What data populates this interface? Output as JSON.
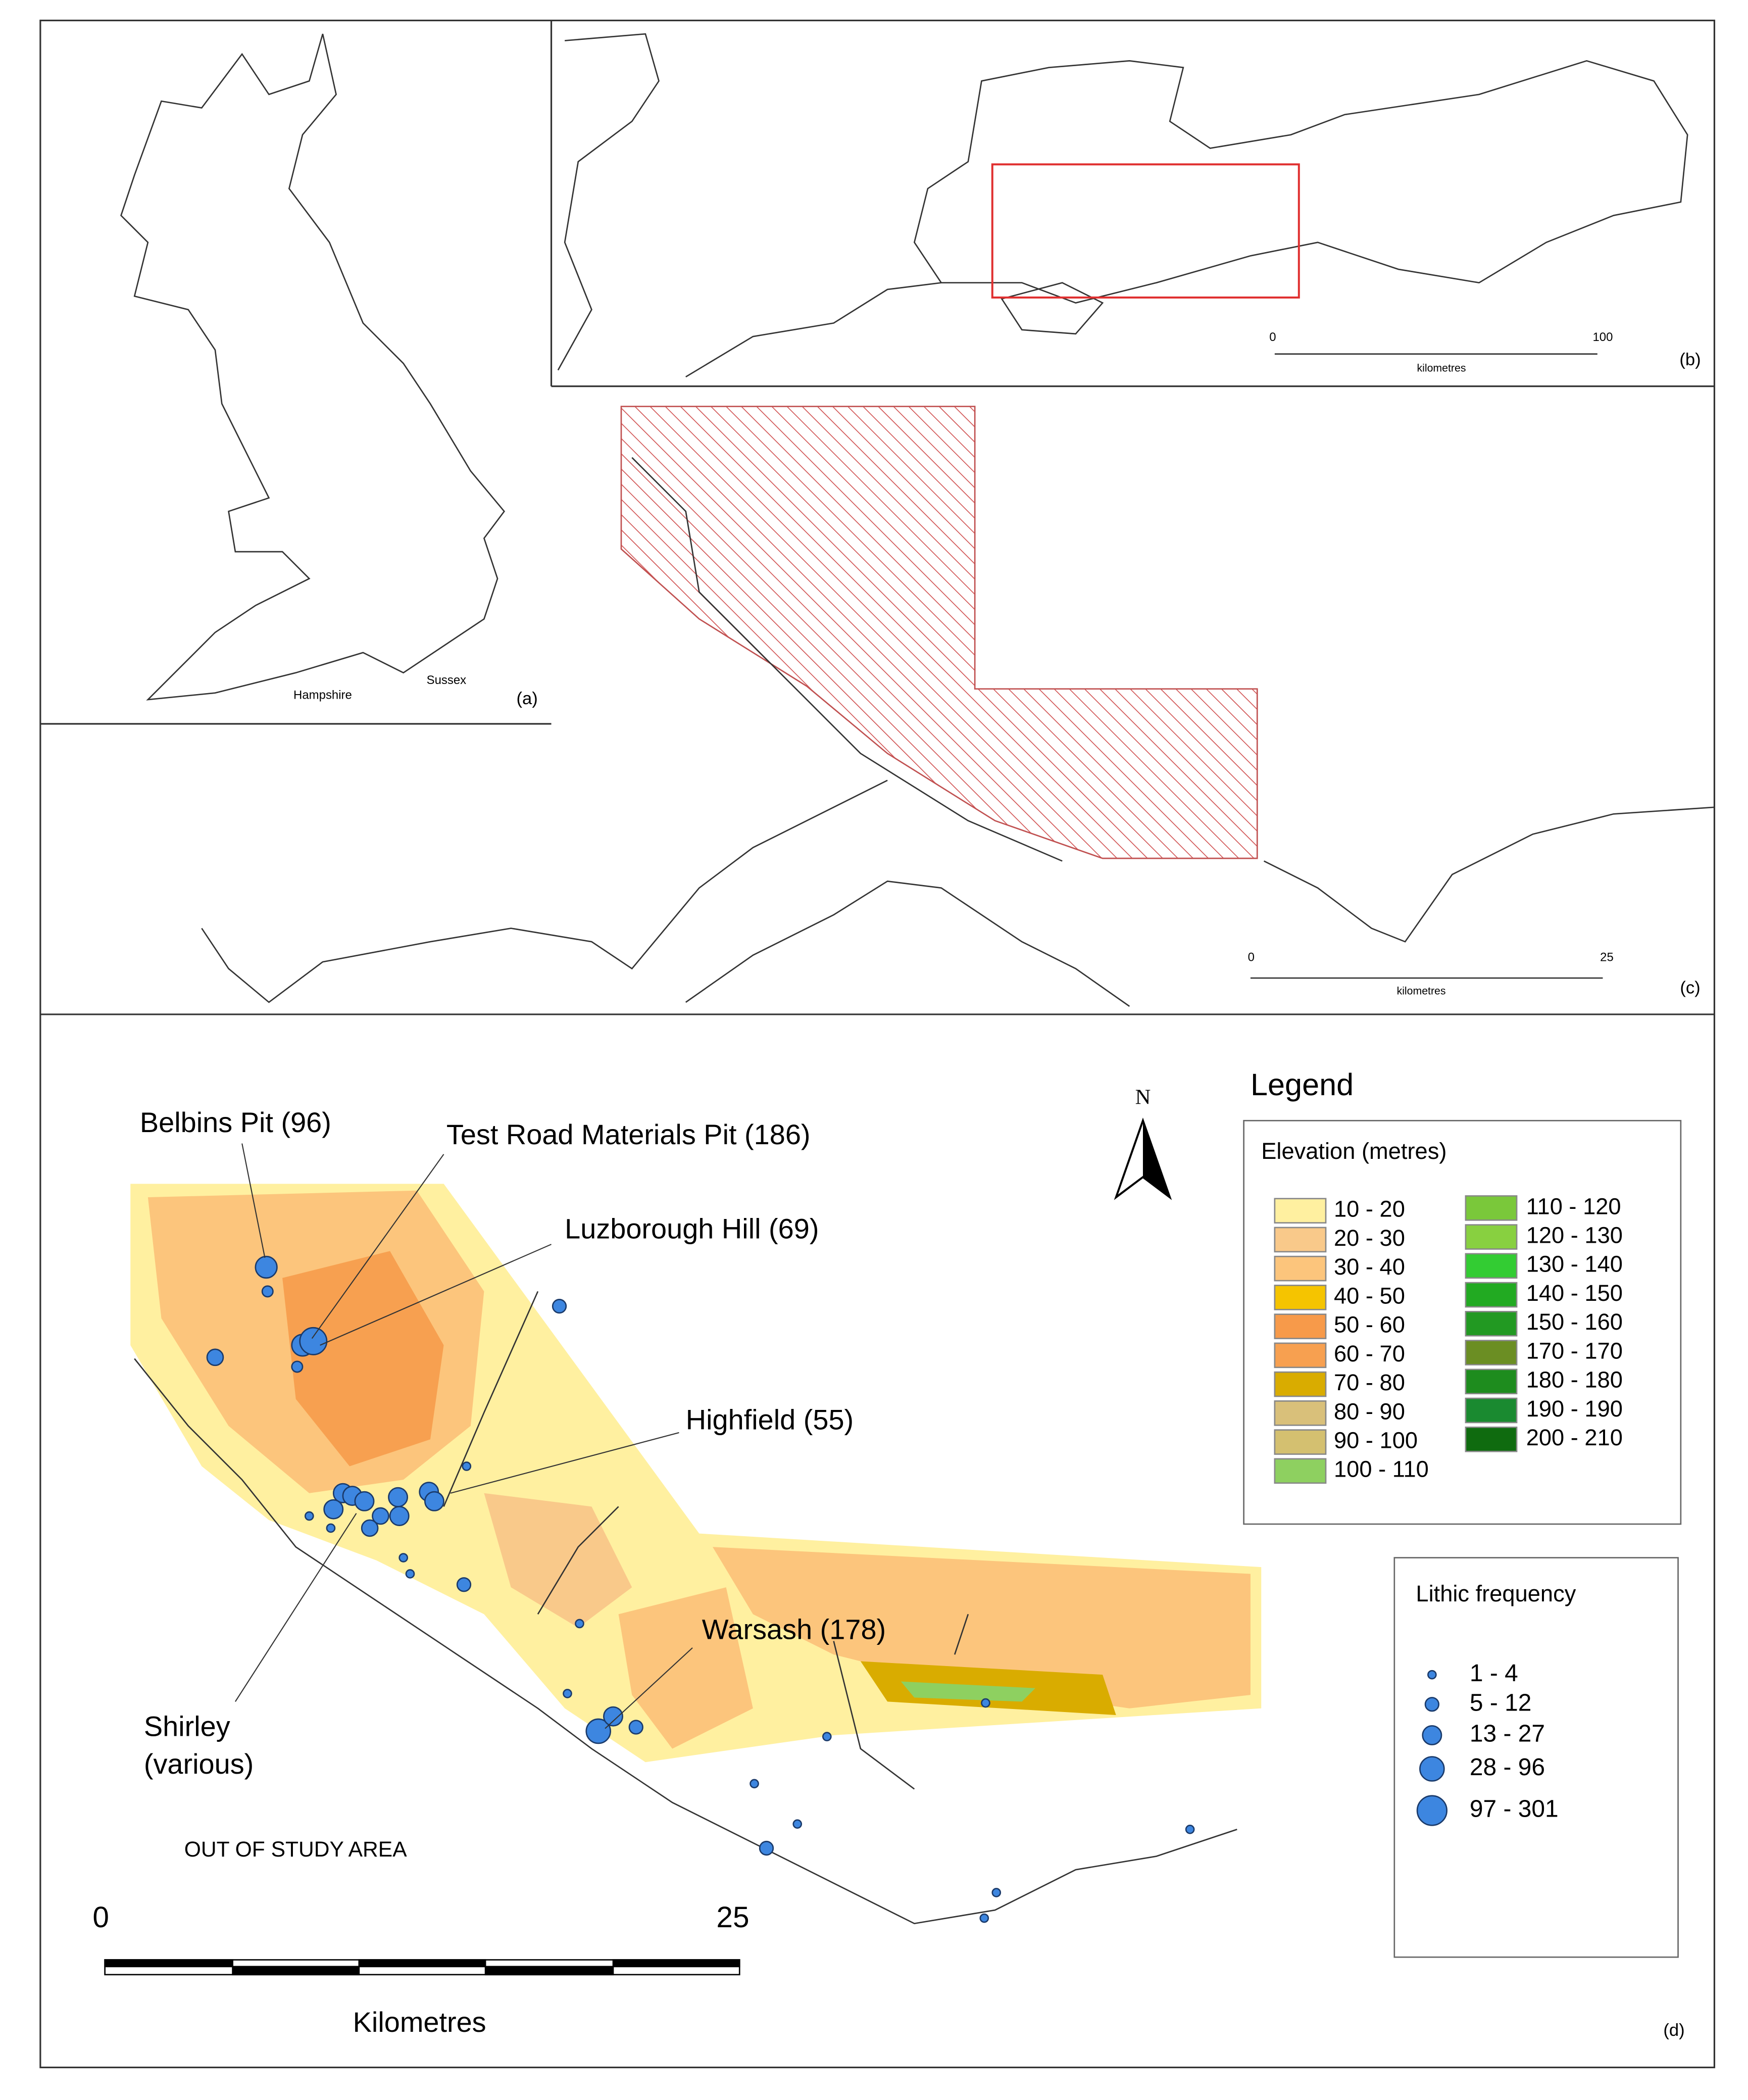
{
  "panels": {
    "a": {
      "tag": "(a)",
      "labels": [
        "Hampshire",
        "Sussex"
      ]
    },
    "b": {
      "tag": "(b)",
      "scale": {
        "start": "0",
        "end": "100",
        "unit": "kilometres"
      }
    },
    "c": {
      "tag": "(c)",
      "scale": {
        "start": "0",
        "end": "25",
        "unit": "kilometres"
      }
    },
    "d": {
      "tag": "(d)",
      "sites": [
        "Belbins Pit (96)",
        "Test Road Materials Pit (186)",
        "Luzborough Hill (69)",
        "Highfield (55)",
        "Warsash (178)",
        "Shirley",
        "(various)"
      ],
      "note": "OUT OF STUDY AREA",
      "scale": {
        "start": "0",
        "end": "25",
        "unit": "Kilometres"
      },
      "north": "N",
      "legend": {
        "title": "Legend",
        "elevation_title": "Elevation (metres)",
        "elevation": [
          {
            "label": "10 - 20",
            "color": "#fff0a0"
          },
          {
            "label": "20 - 30",
            "color": "#f9c98a"
          },
          {
            "label": "30 - 40",
            "color": "#fcc57c"
          },
          {
            "label": "40 - 50",
            "color": "#f5c400"
          },
          {
            "label": "50 - 60",
            "color": "#f79a4a"
          },
          {
            "label": "60 - 70",
            "color": "#f7a050"
          },
          {
            "label": "70 - 80",
            "color": "#d9ac00"
          },
          {
            "label": "80 - 90",
            "color": "#d9c07a"
          },
          {
            "label": "90 - 100",
            "color": "#d4c070"
          },
          {
            "label": "100 - 110",
            "color": "#8ed060"
          },
          {
            "label": "110 - 120",
            "color": "#7ac83a"
          },
          {
            "label": "120 - 130",
            "color": "#88d040"
          },
          {
            "label": "130 - 140",
            "color": "#33cc33"
          },
          {
            "label": "140 - 150",
            "color": "#22aa22"
          },
          {
            "label": "150 - 160",
            "color": "#229922"
          },
          {
            "label": "170 - 170",
            "color": "#6b8e23"
          },
          {
            "label": "180 - 180",
            "color": "#1e8c1e"
          },
          {
            "label": "190 - 190",
            "color": "#1a8a30"
          },
          {
            "label": "200 - 210",
            "color": "#0f6b0f"
          }
        ],
        "lithic_title": "Lithic frequency",
        "lithic": [
          "1 - 4",
          "5 - 12",
          "13 - 27",
          "28 - 96",
          "97 - 301"
        ]
      }
    }
  }
}
